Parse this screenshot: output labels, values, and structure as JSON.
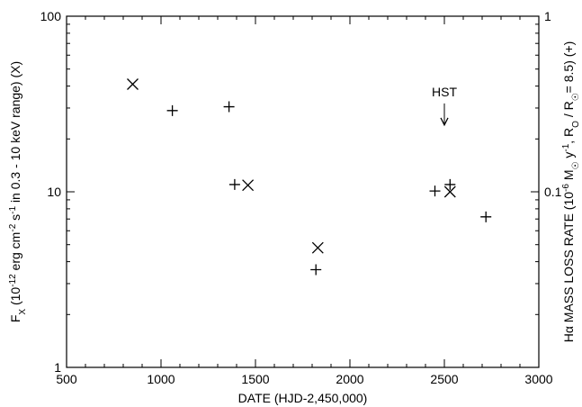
{
  "chart_data": {
    "type": "scatter",
    "x_axis": {
      "label": "DATE (HJD-2,450,000)",
      "range": [
        500,
        3000
      ],
      "ticks": [
        500,
        1000,
        1500,
        2000,
        2500,
        3000
      ],
      "tick_labels": [
        "500",
        "1000",
        "1500",
        "2000",
        "2500",
        "3000"
      ]
    },
    "y_left": {
      "label": "F_X (10^-12 erg cm^-2 s^-1 in 0.3 - 10 keV range) (X)",
      "label_parts": {
        "main": "F",
        "main_sub": "X",
        "a": " (10",
        "a_sup": "-12",
        "b": " erg cm",
        "b_sup": "-2",
        "c": " s",
        "c_sup": "-1",
        "d": " in 0.3 - 10 keV range) (X)"
      },
      "scale": "log",
      "range": [
        1,
        100
      ],
      "ticks": [
        1,
        10,
        100
      ],
      "tick_labels": [
        "1",
        "10",
        "100"
      ]
    },
    "y_right": {
      "label": "Hα MASS LOSS RATE (10^-6 M☉ y^-1, R_O / R☉= 8.5) (+)",
      "label_parts": {
        "a": "Hα MASS LOSS RATE (10",
        "a_sup": "-6",
        "b": " M",
        "b_sub": "☉",
        "c": " y",
        "c_sup": "-1",
        "d": ", R",
        "d_sub": "O",
        "e": " / R",
        "e_sub": "☉",
        "f": "= 8.5) (+)"
      },
      "scale": "log",
      "range": [
        0.01,
        1
      ],
      "ticks": [
        0.1,
        1
      ],
      "tick_labels": [
        "0.1",
        "1"
      ]
    },
    "series": [
      {
        "marker": "x",
        "axis": "left",
        "points": [
          {
            "x": 850,
            "y": 41
          },
          {
            "x": 1460,
            "y": 10.9
          },
          {
            "x": 1830,
            "y": 4.8
          },
          {
            "x": 2530,
            "y": 10.0
          }
        ]
      },
      {
        "marker": "+",
        "axis": "right",
        "points": [
          {
            "x": 1060,
            "y": 0.29
          },
          {
            "x": 1360,
            "y": 0.305
          },
          {
            "x": 1390,
            "y": 0.11
          },
          {
            "x": 1820,
            "y": 0.036
          },
          {
            "x": 2450,
            "y": 0.101
          },
          {
            "x": 2530,
            "y": 0.11
          },
          {
            "x": 2720,
            "y": 0.072
          }
        ]
      }
    ],
    "annotations": [
      {
        "text": "HST",
        "x": 2500,
        "y": 35,
        "arrow": "down",
        "arrow_to_y": 24
      }
    ],
    "grid": false
  }
}
